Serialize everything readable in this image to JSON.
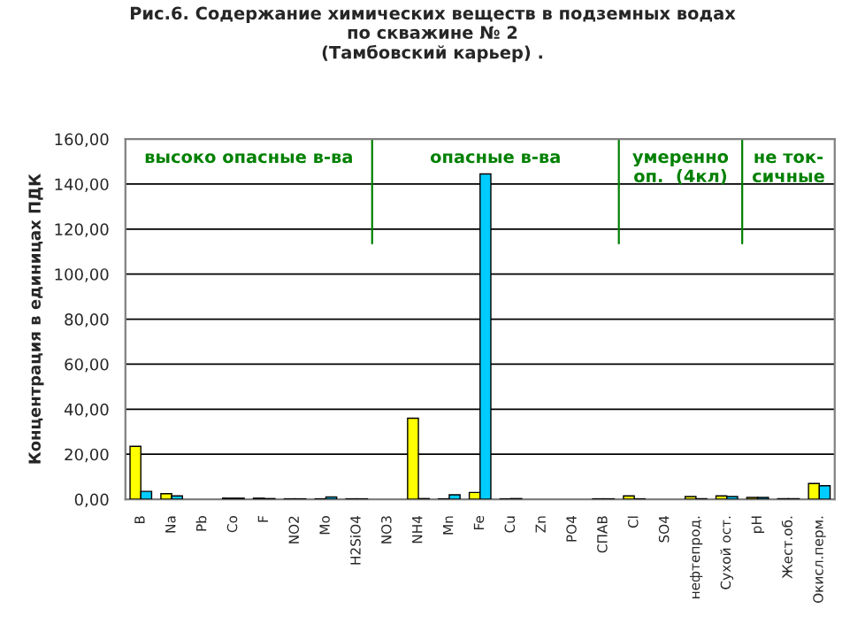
{
  "chart_data": {
    "type": "bar",
    "title": "Рис.6. Содержание химических веществ в подземных водах\nпо скважине № 2\n(Тамбовский карьер) .",
    "ylabel": "Концентрация в единицах ПДК",
    "categories": [
      "B",
      "Na",
      "Pb",
      "Co",
      "F",
      "NO2",
      "Mo",
      "H2SiO4",
      "NO3",
      "NH4",
      "Mn",
      "Fe",
      "Cu",
      "Zn",
      "PO4",
      "СПАВ",
      "Cl",
      "SO4",
      "нефтепрод.",
      "Сухой ост.",
      "pH",
      "Жест.об.",
      "Окисл.перм."
    ],
    "series": [
      {
        "color": "#ffff00",
        "values": [
          23.5,
          2.5,
          0,
          0.5,
          0.5,
          0.2,
          0.2,
          0.2,
          0,
          36,
          0.2,
          3,
          0.2,
          0,
          0,
          0.2,
          1.5,
          0,
          1.2,
          1.5,
          0.8,
          0.2,
          7
        ]
      },
      {
        "color": "#00ccff",
        "values": [
          3.5,
          1.5,
          0,
          0.5,
          0.3,
          0.2,
          1,
          0.2,
          0,
          0.3,
          2,
          144.5,
          0.3,
          0,
          0,
          0.2,
          0.2,
          0,
          0.2,
          1.2,
          0.8,
          0.2,
          6
        ]
      }
    ],
    "ylim": [
      0,
      160
    ],
    "yticks": [
      {
        "value": 0,
        "label": "0,00"
      },
      {
        "value": 20,
        "label": "20,00"
      },
      {
        "value": 40,
        "label": "40,00"
      },
      {
        "value": 60,
        "label": "60,00"
      },
      {
        "value": 80,
        "label": "80,00"
      },
      {
        "value": 100,
        "label": "100,00"
      },
      {
        "value": 120,
        "label": "120,00"
      },
      {
        "value": 140,
        "label": "140,00"
      },
      {
        "value": 160,
        "label": "160,00"
      }
    ],
    "grid": "y",
    "legend": false,
    "annotations": [
      "высоко опасные в-ва",
      "опасные в-ва",
      "умеренно\nоп.  (4кл)",
      "не ток-\nсичные"
    ]
  }
}
